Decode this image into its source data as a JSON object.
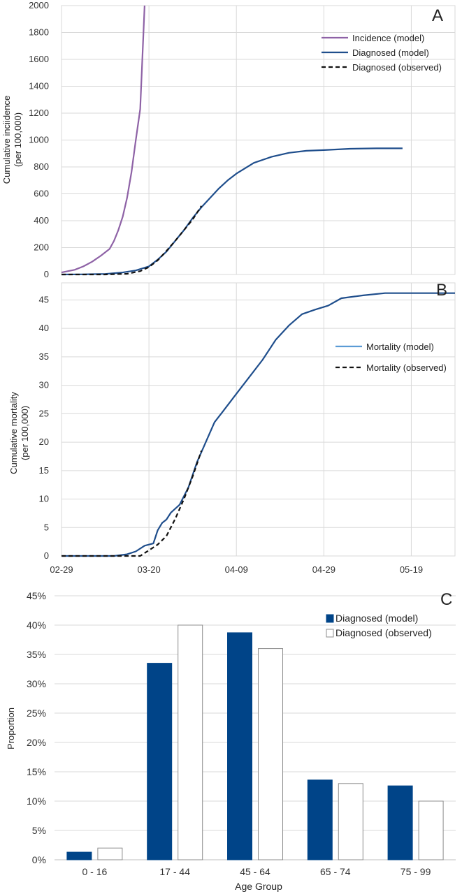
{
  "chart_data": [
    {
      "type": "line",
      "panel_letter": "A",
      "ylabel": [
        "Cumulative inciidence",
        "(per 100,000)"
      ],
      "ylim": [
        0,
        2000
      ],
      "yticks": [
        0,
        200,
        400,
        600,
        800,
        1000,
        1200,
        1400,
        1600,
        1800,
        2000
      ],
      "xlim": [
        "2020-02-29",
        "2020-05-29"
      ],
      "xgrid": [
        "2020-02-29",
        "2020-03-20",
        "2020-04-09",
        "2020-04-29",
        "2020-05-19"
      ],
      "grid": true,
      "legend_position": "top-right",
      "series": [
        {
          "name": "Incidence (model)",
          "color": "#8e62a6",
          "style": "solid",
          "x": [
            "2020-02-29",
            "2020-03-03",
            "2020-03-05",
            "2020-03-07",
            "2020-03-09",
            "2020-03-11",
            "2020-03-12",
            "2020-03-13",
            "2020-03-14",
            "2020-03-15",
            "2020-03-16",
            "2020-03-17",
            "2020-03-18",
            "2020-03-19"
          ],
          "y": [
            15,
            35,
            60,
            95,
            140,
            190,
            250,
            330,
            430,
            570,
            760,
            1000,
            1230,
            2000
          ]
        },
        {
          "name": "Diagnosed (model)",
          "color": "#1f4e8c",
          "style": "solid",
          "x": [
            "2020-02-29",
            "2020-03-05",
            "2020-03-10",
            "2020-03-14",
            "2020-03-17",
            "2020-03-20",
            "2020-03-22",
            "2020-03-24",
            "2020-03-26",
            "2020-03-28",
            "2020-03-30",
            "2020-04-01",
            "2020-04-03",
            "2020-04-05",
            "2020-04-07",
            "2020-04-09",
            "2020-04-13",
            "2020-04-17",
            "2020-04-21",
            "2020-04-25",
            "2020-04-29",
            "2020-05-05",
            "2020-05-11",
            "2020-05-17"
          ],
          "y": [
            0,
            1,
            4,
            15,
            30,
            60,
            110,
            170,
            250,
            330,
            420,
            500,
            570,
            640,
            700,
            750,
            830,
            875,
            905,
            920,
            925,
            935,
            938,
            938
          ]
        },
        {
          "name": "Diagnosed (observed)",
          "color": "#111111",
          "style": "dashed",
          "x": [
            "2020-02-29",
            "2020-03-10",
            "2020-03-15",
            "2020-03-18",
            "2020-03-20",
            "2020-03-22",
            "2020-03-24",
            "2020-03-26",
            "2020-03-28",
            "2020-03-30",
            "2020-04-01"
          ],
          "y": [
            0,
            0,
            5,
            25,
            55,
            105,
            175,
            250,
            330,
            410,
            510
          ]
        }
      ]
    },
    {
      "type": "line",
      "panel_letter": "B",
      "ylabel": [
        "Cumulative mortality",
        "(per 100,000)"
      ],
      "ylim": [
        0,
        48
      ],
      "yticks": [
        0,
        5,
        10,
        15,
        20,
        25,
        30,
        35,
        40,
        45
      ],
      "xlim": [
        "2020-02-29",
        "2020-05-29"
      ],
      "xticks": [
        "02-29",
        "03-20",
        "04-09",
        "04-29",
        "05-19"
      ],
      "xgrid": [
        "2020-02-29",
        "2020-03-20",
        "2020-04-09",
        "2020-04-29",
        "2020-05-19"
      ],
      "grid": true,
      "legend_position": "right",
      "legend_series": [
        {
          "name": "Mortality (model)",
          "color": "#5b9bd5",
          "style": "solid"
        },
        {
          "name": "Mortality (observed)",
          "color": "#111111",
          "style": "dashed"
        }
      ],
      "series": [
        {
          "name": "Mortality (model)",
          "color": "#1f4e8c",
          "style": "solid",
          "x": [
            "2020-02-29",
            "2020-03-12",
            "2020-03-15",
            "2020-03-17",
            "2020-03-19",
            "2020-03-21",
            "2020-03-22",
            "2020-03-23",
            "2020-03-24",
            "2020-03-25",
            "2020-03-27",
            "2020-03-29",
            "2020-03-31",
            "2020-04-02",
            "2020-04-04",
            "2020-04-06",
            "2020-04-09",
            "2020-04-12",
            "2020-04-15",
            "2020-04-18",
            "2020-04-21",
            "2020-04-24",
            "2020-04-27",
            "2020-04-30",
            "2020-05-03",
            "2020-05-08",
            "2020-05-13",
            "2020-05-29"
          ],
          "y": [
            0,
            0,
            0.3,
            0.8,
            1.8,
            2.2,
            4.5,
            5.8,
            6.4,
            7.6,
            9.0,
            12.0,
            16.5,
            20.0,
            23.5,
            25.5,
            28.5,
            31.5,
            34.5,
            38.0,
            40.5,
            42.5,
            43.3,
            44.0,
            45.3,
            45.8,
            46.2,
            46.2
          ]
        },
        {
          "name": "Mortality (observed)",
          "color": "#111111",
          "style": "dashed",
          "x": [
            "2020-02-29",
            "2020-03-18",
            "2020-03-20",
            "2020-03-22",
            "2020-03-24",
            "2020-03-26",
            "2020-03-28",
            "2020-03-30",
            "2020-04-01"
          ],
          "y": [
            0,
            0,
            1.0,
            2.0,
            3.5,
            6.5,
            10.0,
            14.0,
            18.5
          ]
        }
      ]
    },
    {
      "type": "bar",
      "panel_letter": "C",
      "xlabel": "Age Group",
      "ylabel": "Proportion",
      "ylim": [
        0,
        45
      ],
      "yticks": [
        "0%",
        "5%",
        "10%",
        "15%",
        "20%",
        "25%",
        "30%",
        "35%",
        "40%",
        "45%"
      ],
      "categories": [
        "0 - 16",
        "17 - 44",
        "45 - 64",
        "65 - 74",
        "75 - 99"
      ],
      "grid": true,
      "legend_position": "top-right",
      "series": [
        {
          "name": "Diagnosed (model)",
          "color": "#004488",
          "values": [
            1.3,
            33.5,
            38.7,
            13.6,
            12.6
          ]
        },
        {
          "name": "Diagnosed (observed)",
          "color": "#ffffff",
          "values": [
            2.0,
            40.0,
            36.0,
            13.0,
            10.0
          ]
        }
      ]
    }
  ]
}
